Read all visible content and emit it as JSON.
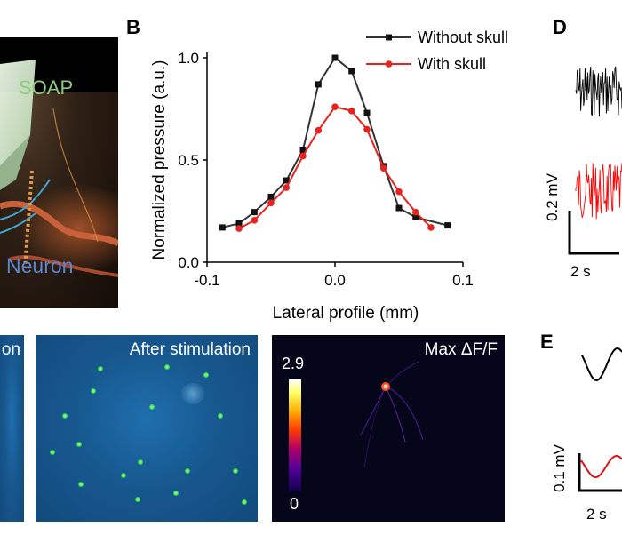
{
  "panel_a": {
    "label_soap": "SOAP",
    "label_neuron": "Neuron",
    "colors": {
      "soap": "#8fcc7a",
      "neuron": "#5b86d6"
    }
  },
  "panel_b": {
    "letter": "B"
  },
  "panel_c": {
    "left_label_fragment": "on",
    "after_label": "After stimulation",
    "max_label": "Max ΔF/F",
    "colorbar_max": "2.9",
    "colorbar_min": "0"
  },
  "panel_d": {
    "letter": "D",
    "scale_v": "0.2 mV",
    "scale_t": "2 s",
    "colors": {
      "trace_top": "#000000",
      "trace_bottom": "#ff0000"
    }
  },
  "panel_e": {
    "letter": "E",
    "scale_v": "0.1 mV",
    "scale_t": "2 s"
  },
  "chart_data": {
    "type": "line",
    "xlabel": "Lateral profile (mm)",
    "ylabel": "Normalized pressure (a.u.)",
    "xlim": [
      -0.1,
      0.1
    ],
    "ylim": [
      0.0,
      1.0
    ],
    "xticks": [
      "-0.1",
      "0.0",
      "0.1"
    ],
    "yticks": [
      "0.0",
      "0.5",
      "1.0"
    ],
    "legend_position": "top-right",
    "grid": false,
    "series": [
      {
        "name": "Without skull",
        "color": "#333333",
        "marker": "square",
        "x": [
          -0.088,
          -0.075,
          -0.063,
          -0.05,
          -0.038,
          -0.025,
          -0.013,
          0.0,
          0.013,
          0.025,
          0.038,
          0.05,
          0.063,
          0.088
        ],
        "y": [
          0.17,
          0.19,
          0.245,
          0.32,
          0.4,
          0.55,
          0.87,
          1.0,
          0.935,
          0.73,
          0.47,
          0.265,
          0.22,
          0.18
        ]
      },
      {
        "name": "With skull",
        "color": "#e8221e",
        "marker": "circle",
        "x": [
          -0.075,
          -0.063,
          -0.05,
          -0.038,
          -0.025,
          -0.013,
          0.0,
          0.013,
          0.025,
          0.038,
          0.05,
          0.063,
          0.075
        ],
        "y": [
          0.165,
          0.205,
          0.29,
          0.365,
          0.52,
          0.645,
          0.76,
          0.74,
          0.65,
          0.46,
          0.345,
          0.245,
          0.17
        ]
      }
    ]
  }
}
